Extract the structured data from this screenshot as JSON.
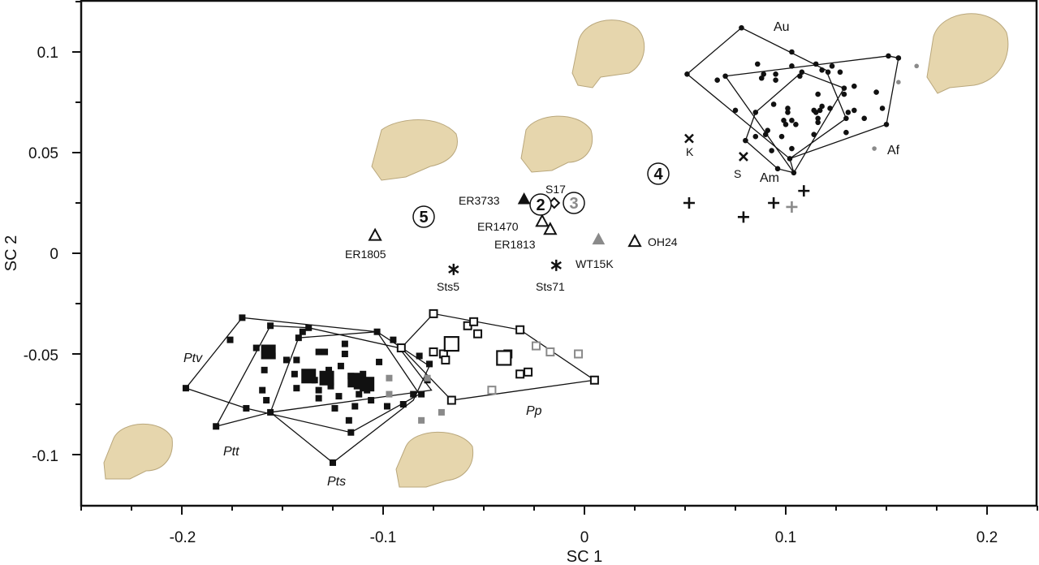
{
  "chart_data": {
    "type": "scatter",
    "title": "",
    "xlabel": "SC 1",
    "ylabel": "SC 2",
    "xlim": [
      -0.25,
      0.225
    ],
    "ylim": [
      -0.125,
      0.126
    ],
    "grid": false,
    "x_ticks": [
      -0.2,
      -0.1,
      0,
      0.1,
      0.2
    ],
    "x_tick_labels": [
      "-0.2",
      "-0.1",
      "0",
      "0.1",
      "0.2"
    ],
    "y_ticks": [
      0.1,
      0.05,
      0,
      -0.05,
      -0.1
    ],
    "y_tick_labels": [
      "0.1",
      "0.05",
      "0",
      "-0.05",
      "-0.1"
    ],
    "colors": {
      "black": "#111111",
      "gray": "#8a8a8a",
      "skull": "#e6d6ad"
    },
    "group_labels": {
      "Au": "Au",
      "Am": "Am",
      "Af": "Af",
      "Ptv": "Ptv",
      "Ptt": "Ptt",
      "Pts": "Pts",
      "Pp": "Pp"
    },
    "human_points": [
      [
        0.051,
        0.089
      ],
      [
        0.078,
        0.112
      ],
      [
        0.103,
        0.1
      ],
      [
        0.086,
        0.094
      ],
      [
        0.103,
        0.093
      ],
      [
        0.115,
        0.094
      ],
      [
        0.118,
        0.091
      ],
      [
        0.123,
        0.093
      ],
      [
        0.121,
        0.09
      ],
      [
        0.127,
        0.09
      ],
      [
        0.151,
        0.098
      ],
      [
        0.156,
        0.097
      ],
      [
        0.07,
        0.088
      ],
      [
        0.066,
        0.086
      ],
      [
        0.089,
        0.089
      ],
      [
        0.095,
        0.089
      ],
      [
        0.088,
        0.087
      ],
      [
        0.095,
        0.086
      ],
      [
        0.107,
        0.088
      ],
      [
        0.108,
        0.09
      ],
      [
        0.129,
        0.082
      ],
      [
        0.129,
        0.079
      ],
      [
        0.134,
        0.083
      ],
      [
        0.145,
        0.08
      ],
      [
        0.116,
        0.079
      ],
      [
        0.075,
        0.071
      ],
      [
        0.094,
        0.074
      ],
      [
        0.101,
        0.072
      ],
      [
        0.101,
        0.07
      ],
      [
        0.099,
        0.066
      ],
      [
        0.1,
        0.064
      ],
      [
        0.103,
        0.066
      ],
      [
        0.105,
        0.064
      ],
      [
        0.114,
        0.071
      ],
      [
        0.115,
        0.07
      ],
      [
        0.118,
        0.073
      ],
      [
        0.117,
        0.071
      ],
      [
        0.122,
        0.072
      ],
      [
        0.116,
        0.067
      ],
      [
        0.116,
        0.065
      ],
      [
        0.131,
        0.07
      ],
      [
        0.134,
        0.071
      ],
      [
        0.13,
        0.067
      ],
      [
        0.139,
        0.067
      ],
      [
        0.148,
        0.072
      ],
      [
        0.15,
        0.064
      ],
      [
        0.085,
        0.07
      ],
      [
        0.091,
        0.061
      ],
      [
        0.09,
        0.059
      ],
      [
        0.085,
        0.058
      ],
      [
        0.098,
        0.058
      ],
      [
        0.114,
        0.059
      ],
      [
        0.13,
        0.06
      ],
      [
        0.093,
        0.051
      ],
      [
        0.103,
        0.052
      ],
      [
        0.102,
        0.047
      ],
      [
        0.096,
        0.042
      ],
      [
        0.104,
        0.04
      ],
      [
        0.08,
        0.056
      ]
    ],
    "human_gray_points": [
      [
        0.165,
        0.093
      ],
      [
        0.156,
        0.085
      ],
      [
        0.144,
        0.052
      ]
    ],
    "human_hulls": [
      [
        [
          0.051,
          0.089
        ],
        [
          0.078,
          0.112
        ],
        [
          0.12,
          0.091
        ],
        [
          0.13,
          0.067
        ],
        [
          0.102,
          0.047
        ]
      ],
      [
        [
          0.07,
          0.088
        ],
        [
          0.151,
          0.098
        ],
        [
          0.156,
          0.097
        ],
        [
          0.15,
          0.064
        ],
        [
          0.102,
          0.047
        ],
        [
          0.104,
          0.04
        ]
      ],
      [
        [
          0.108,
          0.09
        ],
        [
          0.129,
          0.082
        ],
        [
          0.104,
          0.04
        ],
        [
          0.096,
          0.042
        ],
        [
          0.08,
          0.056
        ],
        [
          0.085,
          0.07
        ]
      ]
    ],
    "chimp_points": [
      [
        -0.198,
        -0.067
      ],
      [
        -0.17,
        -0.032
      ],
      [
        -0.156,
        -0.036
      ],
      [
        -0.137,
        -0.037
      ],
      [
        -0.14,
        -0.039
      ],
      [
        -0.103,
        -0.039
      ],
      [
        -0.095,
        -0.043
      ],
      [
        -0.176,
        -0.043
      ],
      [
        -0.163,
        -0.047
      ],
      [
        -0.157,
        -0.048
      ],
      [
        -0.155,
        -0.051
      ],
      [
        -0.159,
        -0.058
      ],
      [
        -0.16,
        -0.068
      ],
      [
        -0.158,
        -0.073
      ],
      [
        -0.168,
        -0.077
      ],
      [
        -0.156,
        -0.079
      ],
      [
        -0.183,
        -0.086
      ],
      [
        -0.148,
        -0.053
      ],
      [
        -0.143,
        -0.053
      ],
      [
        -0.142,
        -0.042
      ],
      [
        -0.144,
        -0.06
      ],
      [
        -0.143,
        -0.067
      ],
      [
        -0.132,
        -0.049
      ],
      [
        -0.129,
        -0.049
      ],
      [
        -0.119,
        -0.045
      ],
      [
        -0.119,
        -0.05
      ],
      [
        -0.121,
        -0.056
      ],
      [
        -0.137,
        -0.06
      ],
      [
        -0.134,
        -0.063
      ],
      [
        -0.127,
        -0.058
      ],
      [
        -0.126,
        -0.066
      ],
      [
        -0.132,
        -0.068
      ],
      [
        -0.132,
        -0.072
      ],
      [
        -0.122,
        -0.071
      ],
      [
        -0.116,
        -0.061
      ],
      [
        -0.113,
        -0.066
      ],
      [
        -0.109,
        -0.064
      ],
      [
        -0.102,
        -0.054
      ],
      [
        -0.11,
        -0.06
      ],
      [
        -0.108,
        -0.068
      ],
      [
        -0.112,
        -0.07
      ],
      [
        -0.106,
        -0.073
      ],
      [
        -0.114,
        -0.076
      ],
      [
        -0.124,
        -0.077
      ],
      [
        -0.117,
        -0.083
      ],
      [
        -0.116,
        -0.089
      ],
      [
        -0.125,
        -0.104
      ],
      [
        -0.082,
        -0.051
      ],
      [
        -0.077,
        -0.055
      ],
      [
        -0.085,
        -0.07
      ],
      [
        -0.081,
        -0.07
      ],
      [
        -0.098,
        -0.076
      ],
      [
        -0.09,
        -0.075
      ],
      [
        -0.078,
        -0.063
      ]
    ],
    "chimp_large_points": [
      [
        -0.157,
        -0.049
      ],
      [
        -0.137,
        -0.061
      ],
      [
        -0.128,
        -0.062
      ],
      [
        -0.114,
        -0.063
      ],
      [
        -0.108,
        -0.065
      ]
    ],
    "chimp_gray_points": [
      [
        -0.097,
        -0.062
      ],
      [
        -0.097,
        -0.07
      ],
      [
        -0.078,
        -0.062
      ],
      [
        -0.071,
        -0.079
      ],
      [
        -0.081,
        -0.083
      ]
    ],
    "chimp_hulls": [
      [
        [
          -0.198,
          -0.067
        ],
        [
          -0.17,
          -0.032
        ],
        [
          -0.103,
          -0.039
        ],
        [
          -0.082,
          -0.07
        ],
        [
          -0.116,
          -0.089
        ],
        [
          -0.168,
          -0.077
        ]
      ],
      [
        [
          -0.183,
          -0.086
        ],
        [
          -0.156,
          -0.036
        ],
        [
          -0.137,
          -0.037
        ],
        [
          -0.092,
          -0.047
        ],
        [
          -0.076,
          -0.068
        ],
        [
          -0.156,
          -0.079
        ]
      ],
      [
        [
          -0.156,
          -0.079
        ],
        [
          -0.142,
          -0.042
        ],
        [
          -0.103,
          -0.039
        ],
        [
          -0.077,
          -0.056
        ],
        [
          -0.085,
          -0.073
        ],
        [
          -0.125,
          -0.104
        ]
      ]
    ],
    "bonobo_points": [
      [
        -0.075,
        -0.03
      ],
      [
        -0.091,
        -0.047
      ],
      [
        -0.058,
        -0.036
      ],
      [
        -0.055,
        -0.034
      ],
      [
        -0.053,
        -0.04
      ],
      [
        -0.032,
        -0.038
      ],
      [
        -0.075,
        -0.049
      ],
      [
        -0.07,
        -0.05
      ],
      [
        -0.069,
        -0.053
      ],
      [
        -0.038,
        -0.05
      ],
      [
        -0.032,
        -0.06
      ],
      [
        -0.028,
        -0.059
      ],
      [
        0.005,
        -0.063
      ],
      [
        -0.066,
        -0.073
      ]
    ],
    "bonobo_large_points": [
      [
        -0.066,
        -0.045
      ],
      [
        -0.04,
        -0.052
      ]
    ],
    "bonobo_gray_points": [
      [
        -0.024,
        -0.046
      ],
      [
        -0.017,
        -0.049
      ],
      [
        -0.003,
        -0.05
      ],
      [
        -0.046,
        -0.068
      ]
    ],
    "bonobo_hull": [
      [
        -0.091,
        -0.047
      ],
      [
        -0.075,
        -0.03
      ],
      [
        -0.032,
        -0.038
      ],
      [
        0.005,
        -0.063
      ],
      [
        -0.066,
        -0.073
      ]
    ],
    "fossils": [
      {
        "label": "ER1805",
        "marker": "open-triangle",
        "x": -0.104,
        "y": 0.009
      },
      {
        "label": "ER3733",
        "marker": "filled-triangle",
        "x": -0.03,
        "y": 0.027
      },
      {
        "label": "ER1470",
        "marker": "open-triangle",
        "x": -0.021,
        "y": 0.016
      },
      {
        "label": "ER1813",
        "marker": "open-triangle",
        "x": -0.017,
        "y": 0.012
      },
      {
        "label": "S17",
        "marker": "diamond",
        "x": -0.015,
        "y": 0.025
      },
      {
        "label": "WT15K",
        "marker": "gray-triangle",
        "x": 0.007,
        "y": 0.007
      },
      {
        "label": "OH24",
        "marker": "open-triangle",
        "x": 0.025,
        "y": 0.006
      },
      {
        "label": "Sts5",
        "marker": "asterisk",
        "x": -0.065,
        "y": -0.008
      },
      {
        "label": "Sts71",
        "marker": "asterisk",
        "x": -0.014,
        "y": -0.006
      },
      {
        "label": "K",
        "marker": "x",
        "x": 0.052,
        "y": 0.057
      },
      {
        "label": "S",
        "marker": "x",
        "x": 0.079,
        "y": 0.048
      }
    ],
    "plus_points": [
      [
        0.052,
        0.025
      ],
      [
        0.079,
        0.018
      ],
      [
        0.094,
        0.025
      ],
      [
        0.109,
        0.031
      ]
    ],
    "plus_gray_points": [
      [
        0.103,
        0.023
      ]
    ],
    "circled_numbers": [
      {
        "label": "5",
        "x": -0.08,
        "y": 0.018,
        "color": "#111111"
      },
      {
        "label": "2",
        "x": -0.022,
        "y": 0.024,
        "color": "#111111"
      },
      {
        "label": "3",
        "x": -0.005,
        "y": 0.025,
        "color": "#8a8a8a"
      },
      {
        "label": "4",
        "x": 0.037,
        "y": 0.04,
        "color": "#111111"
      }
    ]
  }
}
